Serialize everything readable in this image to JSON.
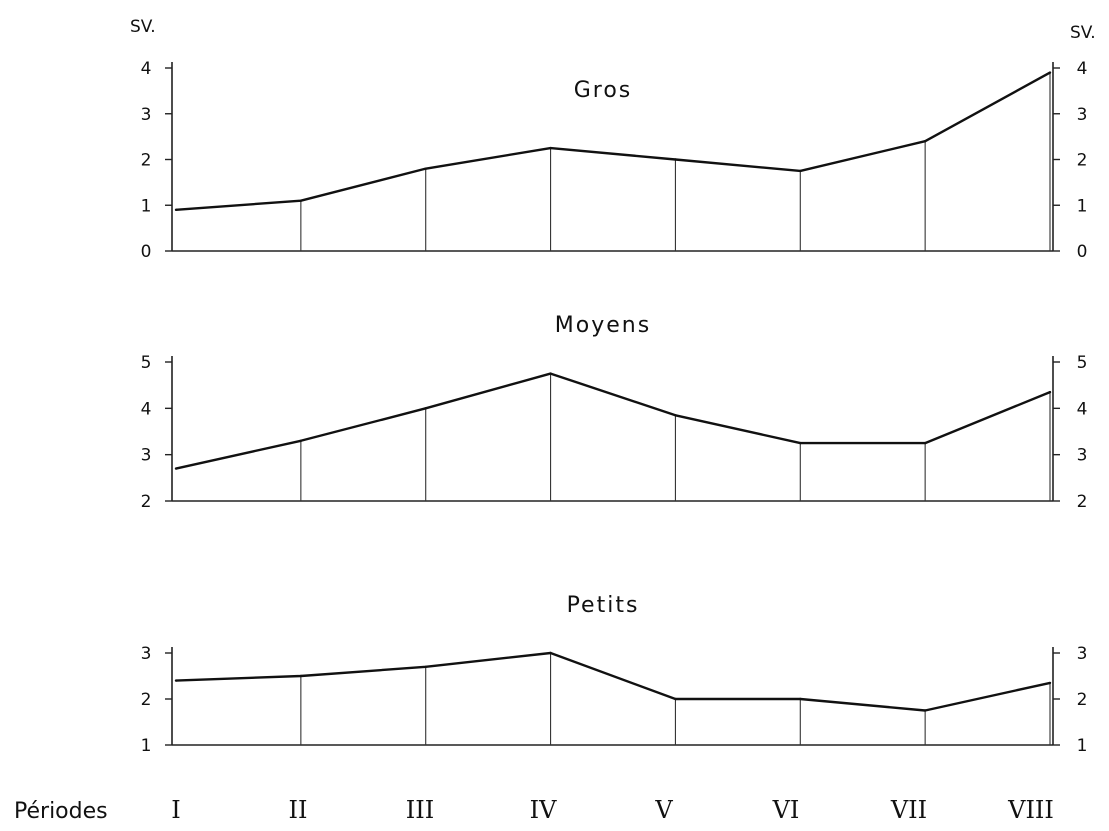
{
  "chart_data": {
    "type": "line",
    "x_axis_label": "Périodes",
    "categories": [
      "I",
      "II",
      "III",
      "IV",
      "V",
      "VI",
      "VII",
      "VIII"
    ],
    "unit_left": "SV.",
    "unit_right": "SV.",
    "panels": [
      {
        "id": "gros",
        "title": "Gros",
        "ylim": [
          0,
          4
        ],
        "yticks": [
          0,
          1,
          2,
          3,
          4
        ],
        "values": [
          0.9,
          1.1,
          1.8,
          2.25,
          2.0,
          1.75,
          2.4,
          3.9
        ]
      },
      {
        "id": "moyens",
        "title": "Moyens",
        "ylim": [
          2,
          5
        ],
        "yticks": [
          2,
          3,
          4,
          5
        ],
        "values": [
          2.7,
          3.3,
          4.0,
          4.75,
          3.85,
          3.25,
          3.25,
          4.35
        ]
      },
      {
        "id": "petits",
        "title": "Petits",
        "ylim": [
          1,
          3
        ],
        "yticks": [
          1,
          2,
          3
        ],
        "values": [
          2.4,
          2.5,
          2.7,
          3.0,
          2.0,
          2.0,
          1.75,
          2.35
        ]
      }
    ]
  }
}
